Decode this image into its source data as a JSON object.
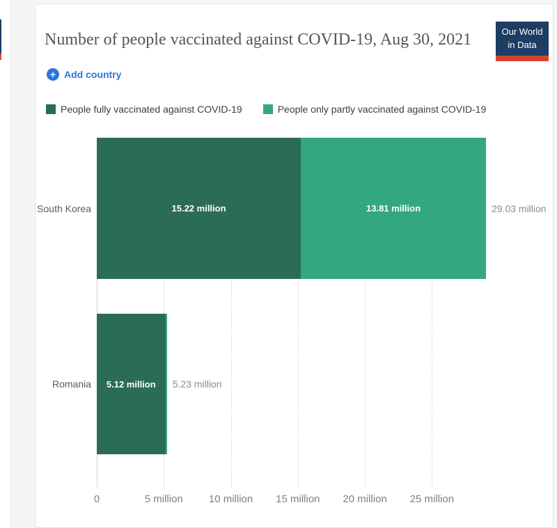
{
  "header": {
    "title": "Number of people vaccinated against COVID-19, Aug 30, 2021",
    "logo": {
      "line1": "Our World",
      "line2": "in Data",
      "bg_color": "#1d3d63",
      "accent_color": "#d8432f"
    }
  },
  "toolbar": {
    "add_country_label": "Add country",
    "plus_glyph": "+",
    "accent_color": "#2a76dd"
  },
  "legend": {
    "items": [
      {
        "label": "People fully vaccinated against COVID-19",
        "color": "#2b6c55"
      },
      {
        "label": "People only partly vaccinated against COVID-19",
        "color": "#33a87f"
      }
    ]
  },
  "chart_data": {
    "type": "bar",
    "orientation": "horizontal",
    "stacked": true,
    "title": "Number of people vaccinated against COVID-19, Aug 30, 2021",
    "date": "Aug 30, 2021",
    "categories": [
      "South Korea",
      "Romania"
    ],
    "series": [
      {
        "name": "People fully vaccinated against COVID-19",
        "color": "#2b6c55",
        "values": [
          15.22,
          5.12
        ],
        "value_labels": [
          "15.22 million",
          "5.12 million"
        ]
      },
      {
        "name": "People only partly vaccinated against COVID-19",
        "color": "#33a87f",
        "values": [
          13.81,
          0.11
        ],
        "value_labels": [
          "13.81 million",
          ""
        ]
      }
    ],
    "totals": [
      29.03,
      5.23
    ],
    "total_labels": [
      "29.03 million",
      "5.23 million"
    ],
    "unit": "million",
    "x_ticks": [
      {
        "value": 0,
        "label": "0"
      },
      {
        "value": 5,
        "label": "5 million"
      },
      {
        "value": 10,
        "label": "10 million"
      },
      {
        "value": 15,
        "label": "15 million"
      },
      {
        "value": 20,
        "label": "20 million"
      },
      {
        "value": 25,
        "label": "25 million"
      }
    ],
    "xlim": [
      0,
      29.03
    ],
    "grid": "vertical-dashed",
    "legend_position": "top"
  }
}
